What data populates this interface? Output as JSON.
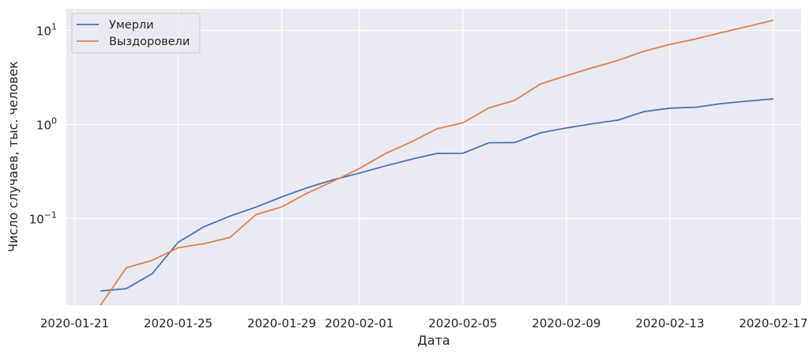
{
  "chart_data": {
    "type": "line",
    "title": "",
    "xlabel": "Дата",
    "ylabel": "Число случаев, тыс. человек",
    "yscale": "log",
    "ylim": [
      0.012,
      17
    ],
    "xlim": [
      "2020-01-21",
      "2020-02-18"
    ],
    "grid": true,
    "legend_position": "top-left",
    "background": "#eaeaf2",
    "x_ticks": [
      "2020-01-21",
      "2020-01-25",
      "2020-01-29",
      "2020-02-01",
      "2020-02-05",
      "2020-02-09",
      "2020-02-13",
      "2020-02-17"
    ],
    "y_ticks": [
      {
        "value": 0.1,
        "base": "10",
        "exp": "−1"
      },
      {
        "value": 1,
        "base": "10",
        "exp": "0"
      },
      {
        "value": 10,
        "base": "10",
        "exp": "1"
      }
    ],
    "x": [
      "2020-01-22",
      "2020-01-23",
      "2020-01-24",
      "2020-01-25",
      "2020-01-26",
      "2020-01-27",
      "2020-01-28",
      "2020-01-29",
      "2020-01-30",
      "2020-01-31",
      "2020-02-01",
      "2020-02-02",
      "2020-02-03",
      "2020-02-04",
      "2020-02-05",
      "2020-02-06",
      "2020-02-07",
      "2020-02-08",
      "2020-02-09",
      "2020-02-10",
      "2020-02-11",
      "2020-02-12",
      "2020-02-13",
      "2020-02-14",
      "2020-02-15",
      "2020-02-16",
      "2020-02-17"
    ],
    "series": [
      {
        "name": "Умерли",
        "color": "#4c72b0",
        "values": [
          0.017,
          0.018,
          0.026,
          0.056,
          0.082,
          0.106,
          0.132,
          0.17,
          0.213,
          0.259,
          0.304,
          0.362,
          0.426,
          0.492,
          0.494,
          0.638,
          0.642,
          0.815,
          0.917,
          1.018,
          1.113,
          1.37,
          1.49,
          1.524,
          1.666,
          1.77,
          1.873
        ]
      },
      {
        "name": "Выздоровели",
        "color": "#dd8452",
        "values": [
          0.01,
          0.03,
          0.036,
          0.049,
          0.054,
          0.063,
          0.11,
          0.133,
          0.187,
          0.25,
          0.34,
          0.49,
          0.65,
          0.9,
          1.04,
          1.5,
          1.8,
          2.7,
          3.3,
          4.0,
          4.8,
          6.0,
          7.1,
          8.1,
          9.5,
          11.0,
          12.8
        ]
      }
    ]
  }
}
